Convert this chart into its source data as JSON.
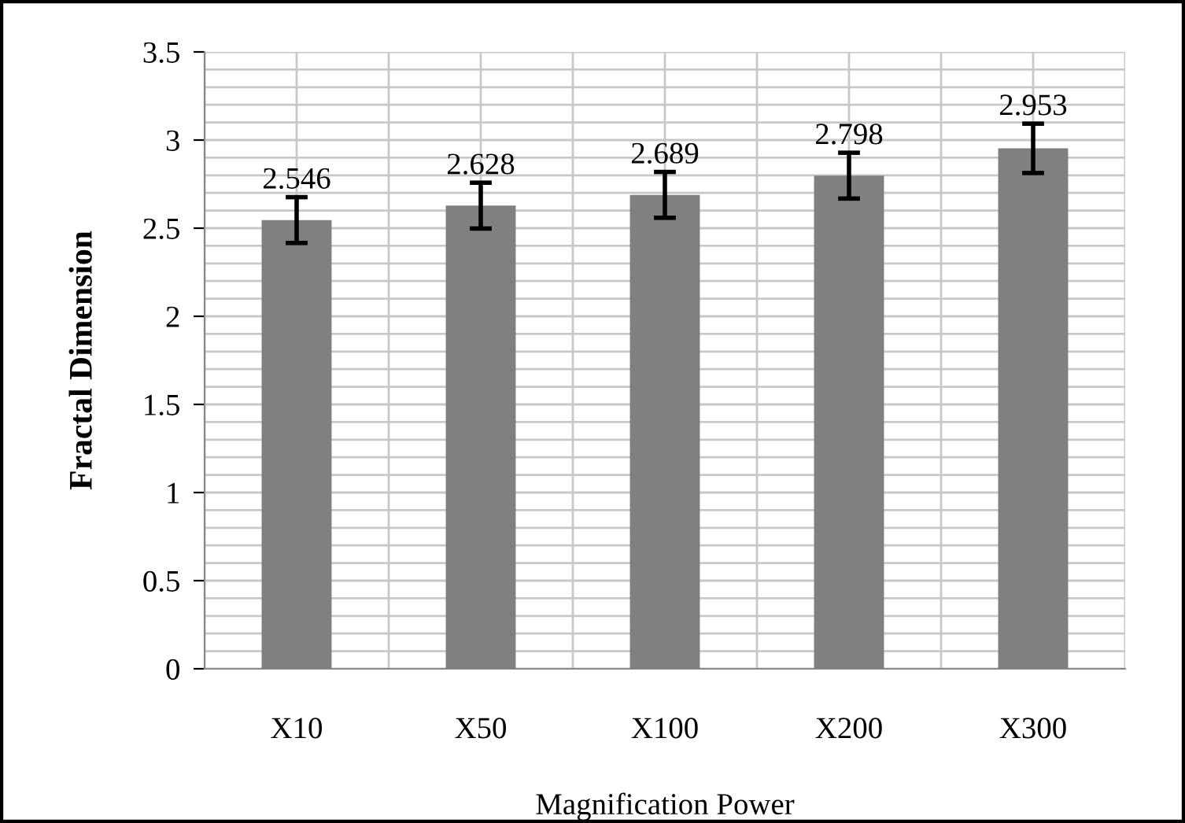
{
  "chart_data": {
    "type": "bar",
    "xlabel": "Magnification Power",
    "ylabel": "Fractal Dimension",
    "categories": [
      "X10",
      "X50",
      "X100",
      "X200",
      "X300"
    ],
    "values": [
      2.546,
      2.628,
      2.689,
      2.798,
      2.953
    ],
    "errors": [
      0.13,
      0.13,
      0.13,
      0.13,
      0.14
    ],
    "color": "#808080",
    "data_labels": true,
    "ylim": [
      0,
      3.5
    ],
    "yticks": [
      0,
      0.5,
      1,
      1.5,
      2,
      2.5,
      3,
      3.5
    ],
    "grid": true,
    "legend": false
  }
}
